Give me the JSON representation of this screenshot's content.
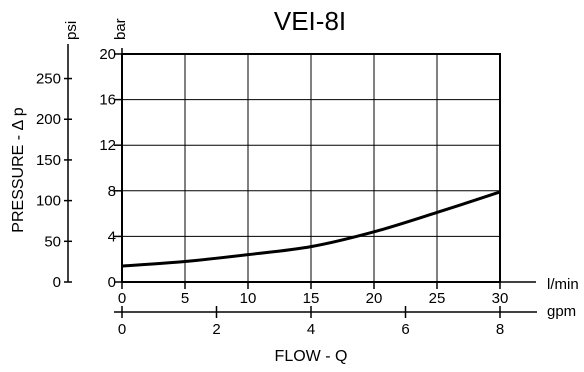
{
  "chart_data": {
    "type": "line",
    "title": "VEI-8I",
    "xlabel": "FLOW - Q",
    "ylabel": "PRESSURE - Δ p",
    "x_unit_primary": "l/min",
    "x_unit_secondary": "gpm",
    "y_unit_primary": "bar",
    "y_unit_secondary": "psi",
    "xlim": [
      0,
      30
    ],
    "ylim": [
      0,
      20
    ],
    "x_ticks_primary": [
      "0",
      "5",
      "10",
      "15",
      "20",
      "25",
      "30"
    ],
    "x_ticks_secondary": [
      "0",
      "2",
      "4",
      "6",
      "8"
    ],
    "y_ticks_primary": [
      "0",
      "4",
      "8",
      "12",
      "16",
      "20"
    ],
    "y_ticks_secondary": [
      "0",
      "50",
      "100",
      "150",
      "200",
      "250"
    ],
    "grid": true,
    "series": [
      {
        "x": [
          0,
          5,
          10,
          15,
          20,
          25,
          30
        ],
        "y": [
          1.4,
          1.8,
          2.4,
          3.1,
          4.4,
          6.1,
          7.9
        ]
      }
    ]
  }
}
